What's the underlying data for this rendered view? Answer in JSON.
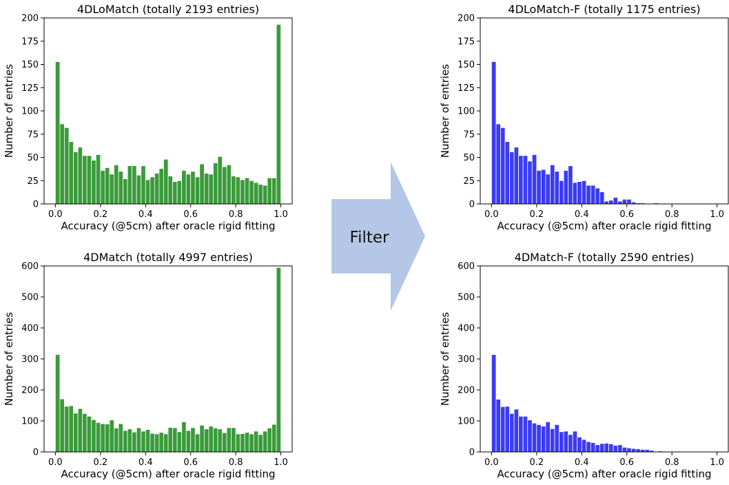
{
  "arrow": {
    "label": "Filter",
    "color": "#b4c7e7"
  },
  "chart_data": [
    {
      "id": "top-left",
      "type": "bar",
      "title": "4DLoMatch (totally 2193 entries)",
      "xlabel": "Accuracy (@5cm) after oracle rigid fitting",
      "ylabel": "Number of entries",
      "color": "#3a9b3a",
      "bin_width": 0.02,
      "bin_starts": [
        0.0,
        0.02,
        0.04,
        0.06,
        0.08,
        0.1,
        0.12,
        0.14,
        0.16,
        0.18,
        0.2,
        0.22,
        0.24,
        0.26,
        0.28,
        0.3,
        0.32,
        0.34,
        0.36,
        0.38,
        0.4,
        0.42,
        0.44,
        0.46,
        0.48,
        0.5,
        0.52,
        0.54,
        0.56,
        0.58,
        0.6,
        0.62,
        0.64,
        0.66,
        0.68,
        0.7,
        0.72,
        0.74,
        0.76,
        0.78,
        0.8,
        0.82,
        0.84,
        0.86,
        0.88,
        0.9,
        0.92,
        0.94,
        0.96,
        0.98
      ],
      "values": [
        153,
        86,
        82,
        67,
        56,
        61,
        52,
        52,
        47,
        53,
        36,
        39,
        32,
        42,
        35,
        27,
        41,
        41,
        31,
        41,
        26,
        29,
        33,
        38,
        48,
        30,
        24,
        25,
        36,
        32,
        35,
        29,
        43,
        33,
        32,
        44,
        51,
        40,
        42,
        30,
        29,
        26,
        28,
        25,
        23,
        21,
        20,
        28,
        28,
        193
      ],
      "xlim": [
        -0.05,
        1.05
      ],
      "ylim": [
        0,
        200
      ],
      "xticks": [
        0.0,
        0.2,
        0.4,
        0.6,
        0.8,
        1.0
      ],
      "xtick_labels": [
        "0.0",
        "0.2",
        "0.4",
        "0.6",
        "0.8",
        "1.0"
      ],
      "yticks": [
        0,
        25,
        50,
        75,
        100,
        125,
        150,
        175,
        200
      ],
      "ytick_labels": [
        "0",
        "25",
        "50",
        "75",
        "100",
        "125",
        "150",
        "175",
        "200"
      ]
    },
    {
      "id": "bottom-left",
      "type": "bar",
      "title": "4DMatch (totally 4997 entries)",
      "xlabel": "Accuracy (@5cm) after oracle rigid fitting",
      "ylabel": "Number of entries",
      "color": "#3a9b3a",
      "bin_width": 0.02,
      "bin_starts": [
        0.0,
        0.02,
        0.04,
        0.06,
        0.08,
        0.1,
        0.12,
        0.14,
        0.16,
        0.18,
        0.2,
        0.22,
        0.24,
        0.26,
        0.28,
        0.3,
        0.32,
        0.34,
        0.36,
        0.38,
        0.4,
        0.42,
        0.44,
        0.46,
        0.48,
        0.5,
        0.52,
        0.54,
        0.56,
        0.58,
        0.6,
        0.62,
        0.64,
        0.66,
        0.68,
        0.7,
        0.72,
        0.74,
        0.76,
        0.78,
        0.8,
        0.82,
        0.84,
        0.86,
        0.88,
        0.9,
        0.92,
        0.94,
        0.96,
        0.98
      ],
      "values": [
        314,
        171,
        147,
        149,
        125,
        140,
        124,
        115,
        104,
        95,
        91,
        90,
        103,
        77,
        91,
        69,
        74,
        64,
        78,
        67,
        72,
        60,
        58,
        63,
        58,
        79,
        78,
        65,
        97,
        69,
        78,
        58,
        86,
        74,
        83,
        77,
        74,
        62,
        78,
        78,
        58,
        59,
        63,
        58,
        67,
        56,
        67,
        77,
        89,
        595
      ],
      "xlim": [
        -0.05,
        1.05
      ],
      "ylim": [
        0,
        600
      ],
      "xticks": [
        0.0,
        0.2,
        0.4,
        0.6,
        0.8,
        1.0
      ],
      "xtick_labels": [
        "0.0",
        "0.2",
        "0.4",
        "0.6",
        "0.8",
        "1.0"
      ],
      "yticks": [
        0,
        100,
        200,
        300,
        400,
        500,
        600
      ],
      "ytick_labels": [
        "0",
        "100",
        "200",
        "300",
        "400",
        "500",
        "600"
      ]
    },
    {
      "id": "top-right",
      "type": "bar",
      "title": "4DLoMatch-F (totally 1175 entries)",
      "xlabel": "Accuracy (@5cm) after oracle rigid fitting",
      "ylabel": "Number of entries",
      "color": "#3b3bf5",
      "bin_width": 0.02,
      "bin_starts": [
        0.0,
        0.02,
        0.04,
        0.06,
        0.08,
        0.1,
        0.12,
        0.14,
        0.16,
        0.18,
        0.2,
        0.22,
        0.24,
        0.26,
        0.28,
        0.3,
        0.32,
        0.34,
        0.36,
        0.38,
        0.4,
        0.42,
        0.44,
        0.46,
        0.48,
        0.5,
        0.52,
        0.54,
        0.56,
        0.58,
        0.6,
        0.62,
        0.64,
        0.66,
        0.68,
        0.7,
        0.72,
        0.74,
        0.76,
        0.78,
        0.8,
        0.82,
        0.84,
        0.86,
        0.88,
        0.9,
        0.92,
        0.94,
        0.96,
        0.98
      ],
      "values": [
        153,
        86,
        82,
        67,
        56,
        61,
        52,
        52,
        46,
        53,
        36,
        37,
        32,
        42,
        35,
        25,
        36,
        41,
        23,
        24,
        25,
        20,
        20,
        17,
        13,
        3,
        4,
        7,
        3,
        5,
        5,
        2,
        1,
        1,
        0,
        0,
        1,
        0,
        0,
        0,
        0,
        0,
        0,
        0,
        0,
        0,
        0,
        0,
        0,
        0
      ],
      "xlim": [
        -0.05,
        1.05
      ],
      "ylim": [
        0,
        200
      ],
      "xticks": [
        0.0,
        0.2,
        0.4,
        0.6,
        0.8,
        1.0
      ],
      "xtick_labels": [
        "0.0",
        "0.2",
        "0.4",
        "0.6",
        "0.8",
        "1.0"
      ],
      "yticks": [
        0,
        25,
        50,
        75,
        100,
        125,
        150,
        175,
        200
      ],
      "ytick_labels": [
        "0",
        "25",
        "50",
        "75",
        "100",
        "125",
        "150",
        "175",
        "200"
      ]
    },
    {
      "id": "bottom-right",
      "type": "bar",
      "title": "4DMatch-F (totally 2590 entries)",
      "xlabel": "Accuracy (@5cm) after oracle rigid fitting",
      "ylabel": "Number of entries",
      "color": "#3b3bf5",
      "bin_width": 0.02,
      "bin_starts": [
        0.0,
        0.02,
        0.04,
        0.06,
        0.08,
        0.1,
        0.12,
        0.14,
        0.16,
        0.18,
        0.2,
        0.22,
        0.24,
        0.26,
        0.28,
        0.3,
        0.32,
        0.34,
        0.36,
        0.38,
        0.4,
        0.42,
        0.44,
        0.46,
        0.48,
        0.5,
        0.52,
        0.54,
        0.56,
        0.58,
        0.6,
        0.62,
        0.64,
        0.66,
        0.68,
        0.7,
        0.72,
        0.74,
        0.76,
        0.78,
        0.8,
        0.82,
        0.84,
        0.86,
        0.88,
        0.9,
        0.92,
        0.94,
        0.96,
        0.98
      ],
      "values": [
        314,
        170,
        146,
        147,
        124,
        138,
        115,
        115,
        103,
        93,
        88,
        83,
        97,
        75,
        88,
        65,
        67,
        56,
        67,
        48,
        40,
        33,
        30,
        23,
        27,
        28,
        26,
        21,
        23,
        15,
        13,
        11,
        10,
        8,
        8,
        5,
        2,
        3,
        2,
        2,
        1,
        1,
        0,
        0,
        0,
        0,
        0,
        0,
        0,
        0
      ],
      "xlim": [
        -0.05,
        1.05
      ],
      "ylim": [
        0,
        600
      ],
      "xticks": [
        0.0,
        0.2,
        0.4,
        0.6,
        0.8,
        1.0
      ],
      "xtick_labels": [
        "0.0",
        "0.2",
        "0.4",
        "0.6",
        "0.8",
        "1.0"
      ],
      "yticks": [
        0,
        100,
        200,
        300,
        400,
        500,
        600
      ],
      "ytick_labels": [
        "0",
        "100",
        "200",
        "300",
        "400",
        "500",
        "600"
      ]
    }
  ]
}
